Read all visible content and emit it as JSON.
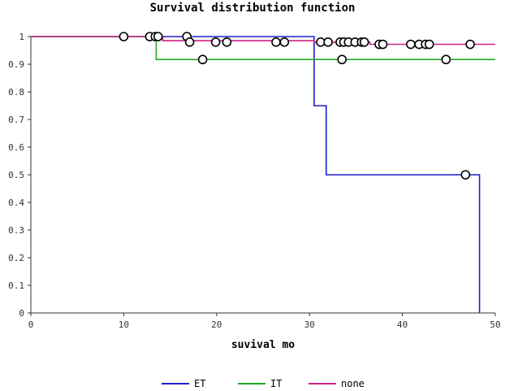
{
  "chart_data": {
    "type": "line",
    "title": "Survival distribution function",
    "xlabel": "suvival mo",
    "ylabel": "",
    "xlim": [
      0,
      50
    ],
    "ylim": [
      0,
      1
    ],
    "x_ticks": [
      0,
      10,
      20,
      30,
      40,
      50
    ],
    "y_ticks": [
      0,
      0.1,
      0.2,
      0.3,
      0.4,
      0.5,
      0.6,
      0.7,
      0.8,
      0.9,
      1
    ],
    "x_tick_labels": [
      "0",
      "10",
      "20",
      "30",
      "40",
      "50"
    ],
    "y_tick_labels": [
      "0",
      "0.1",
      "0.2",
      "0.3",
      "0.4",
      "0.5",
      "0.6",
      "0.7",
      "0.8",
      "0.9",
      "1"
    ],
    "grid": false,
    "legend_position": "bottom-center",
    "series": [
      {
        "name": "ET",
        "color": "#1f1fcc",
        "steps": [
          [
            0,
            1
          ],
          [
            30.5,
            1
          ],
          [
            30.5,
            0.75
          ],
          [
            31.8,
            0.75
          ],
          [
            31.8,
            0.5
          ],
          [
            48.3,
            0.5
          ],
          [
            48.3,
            0
          ]
        ]
      },
      {
        "name": "IT",
        "color": "#22aa22",
        "steps": [
          [
            0,
            1
          ],
          [
            13.5,
            1
          ],
          [
            13.5,
            0.917
          ],
          [
            50,
            0.917
          ]
        ]
      },
      {
        "name": "none",
        "color": "#cc2288",
        "steps": [
          [
            0,
            1
          ],
          [
            14.2,
            1
          ],
          [
            14.2,
            0.985
          ],
          [
            30.5,
            0.985
          ],
          [
            30.5,
            0.98
          ],
          [
            36.5,
            0.98
          ],
          [
            36.5,
            0.972
          ],
          [
            50,
            0.972
          ]
        ]
      }
    ],
    "censored_points": [
      {
        "x": 10,
        "y": 1
      },
      {
        "x": 12.8,
        "y": 1
      },
      {
        "x": 13.4,
        "y": 1
      },
      {
        "x": 13.7,
        "y": 1
      },
      {
        "x": 16.8,
        "y": 1
      },
      {
        "x": 17.1,
        "y": 0.98
      },
      {
        "x": 18.5,
        "y": 0.917
      },
      {
        "x": 19.9,
        "y": 0.98
      },
      {
        "x": 21.1,
        "y": 0.98
      },
      {
        "x": 26.4,
        "y": 0.98
      },
      {
        "x": 27.3,
        "y": 0.98
      },
      {
        "x": 31.2,
        "y": 0.98
      },
      {
        "x": 32.0,
        "y": 0.98
      },
      {
        "x": 33.3,
        "y": 0.98
      },
      {
        "x": 33.7,
        "y": 0.98
      },
      {
        "x": 34.2,
        "y": 0.98
      },
      {
        "x": 34.9,
        "y": 0.98
      },
      {
        "x": 35.6,
        "y": 0.98
      },
      {
        "x": 35.9,
        "y": 0.98
      },
      {
        "x": 33.5,
        "y": 0.917
      },
      {
        "x": 37.5,
        "y": 0.972
      },
      {
        "x": 37.9,
        "y": 0.972
      },
      {
        "x": 40.9,
        "y": 0.972
      },
      {
        "x": 41.8,
        "y": 0.972
      },
      {
        "x": 42.5,
        "y": 0.972
      },
      {
        "x": 42.9,
        "y": 0.972
      },
      {
        "x": 44.7,
        "y": 0.917
      },
      {
        "x": 46.8,
        "y": 0.5
      },
      {
        "x": 47.3,
        "y": 0.972
      }
    ]
  }
}
